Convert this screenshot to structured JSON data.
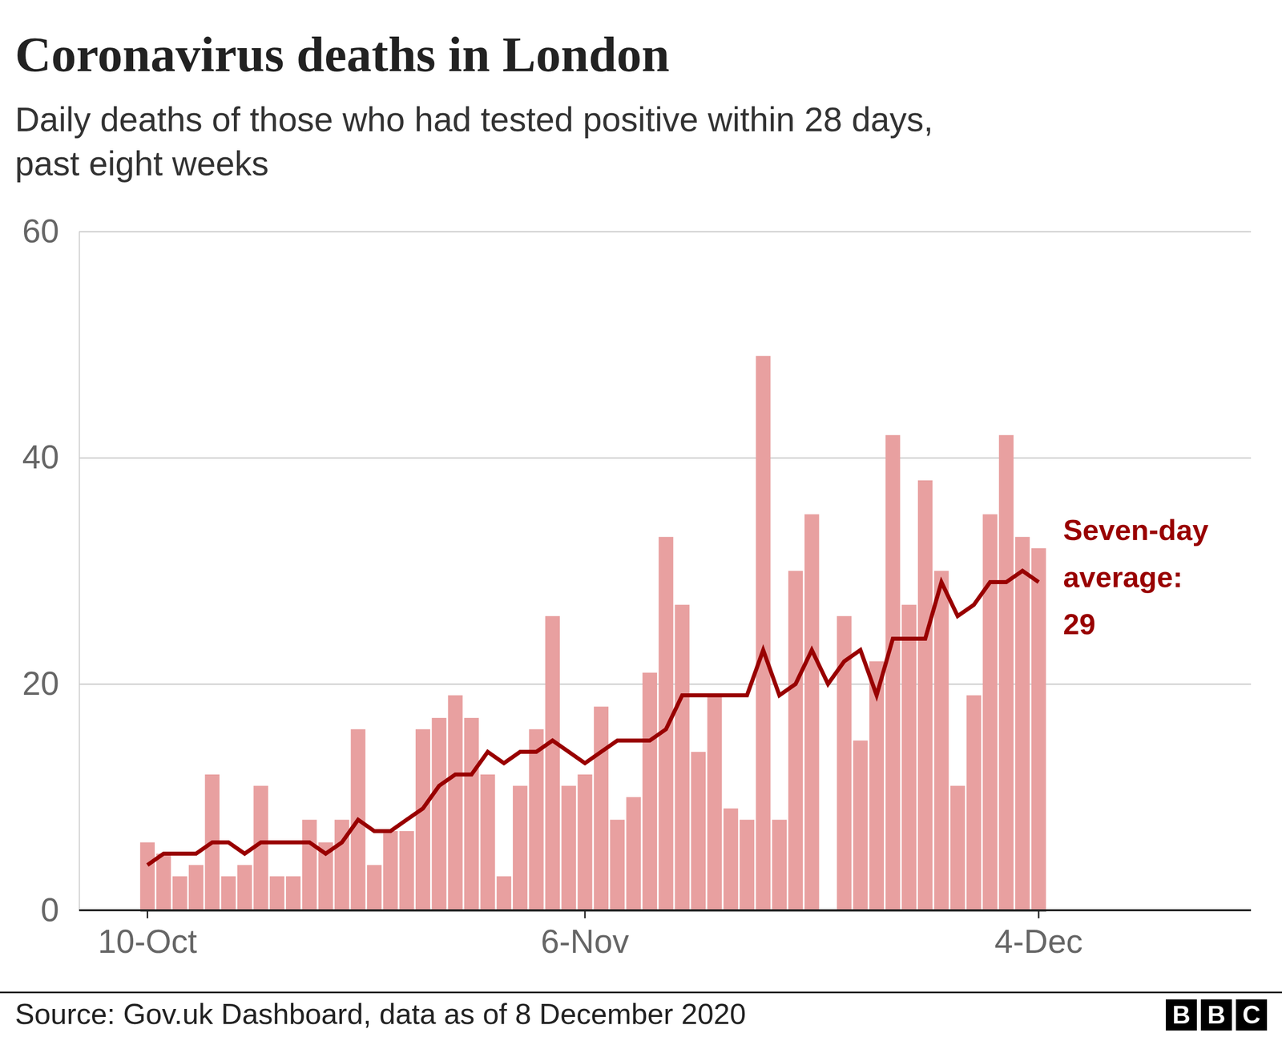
{
  "chart_data": {
    "type": "bar",
    "title": "Coronavirus deaths in London",
    "subtitle": [
      "Daily deaths of those who had tested positive within 28 days,",
      "past eight weeks"
    ],
    "categories": [
      "10-Oct",
      null,
      null,
      null,
      null,
      null,
      null,
      null,
      null,
      null,
      null,
      null,
      null,
      null,
      null,
      null,
      null,
      null,
      null,
      null,
      null,
      null,
      null,
      null,
      null,
      null,
      null,
      "6-Nov",
      null,
      null,
      null,
      null,
      null,
      null,
      null,
      null,
      null,
      null,
      null,
      null,
      null,
      null,
      null,
      null,
      null,
      null,
      null,
      null,
      null,
      null,
      null,
      null,
      null,
      null,
      null,
      "4-Dec"
    ],
    "series": [
      {
        "type": "bar",
        "color": "#e8a0a0",
        "values": [
          6,
          5,
          3,
          4,
          12,
          3,
          4,
          11,
          3,
          3,
          8,
          6,
          8,
          16,
          4,
          7,
          7,
          16,
          17,
          19,
          17,
          12,
          3,
          11,
          16,
          26,
          11,
          12,
          18,
          8,
          10,
          21,
          33,
          27,
          14,
          19,
          9,
          8,
          49,
          8,
          30,
          35,
          0,
          26,
          15,
          22,
          42,
          27,
          38,
          30,
          11,
          19,
          35,
          42,
          33,
          32
        ]
      },
      {
        "type": "line",
        "color": "#990000",
        "values": [
          4,
          5,
          5,
          5,
          6,
          6,
          5,
          6,
          6,
          6,
          6,
          5,
          6,
          8,
          7,
          7,
          8,
          9,
          11,
          12,
          12,
          14,
          13,
          14,
          14,
          15,
          14,
          13,
          14,
          15,
          15,
          15,
          16,
          19,
          19,
          19,
          19,
          19,
          23,
          19,
          20,
          23,
          20,
          22,
          23,
          19,
          24,
          24,
          24,
          29,
          26,
          27,
          29,
          29,
          30,
          29
        ]
      }
    ],
    "ylim": [
      0,
      60
    ],
    "yticks": [
      0,
      20,
      40,
      60
    ],
    "grid": true,
    "annotation": {
      "text": "Seven-day average:",
      "value": 29
    },
    "source": "Source: Gov.uk Dashboard, data as of 8 December 2020",
    "logo": "BBC"
  }
}
